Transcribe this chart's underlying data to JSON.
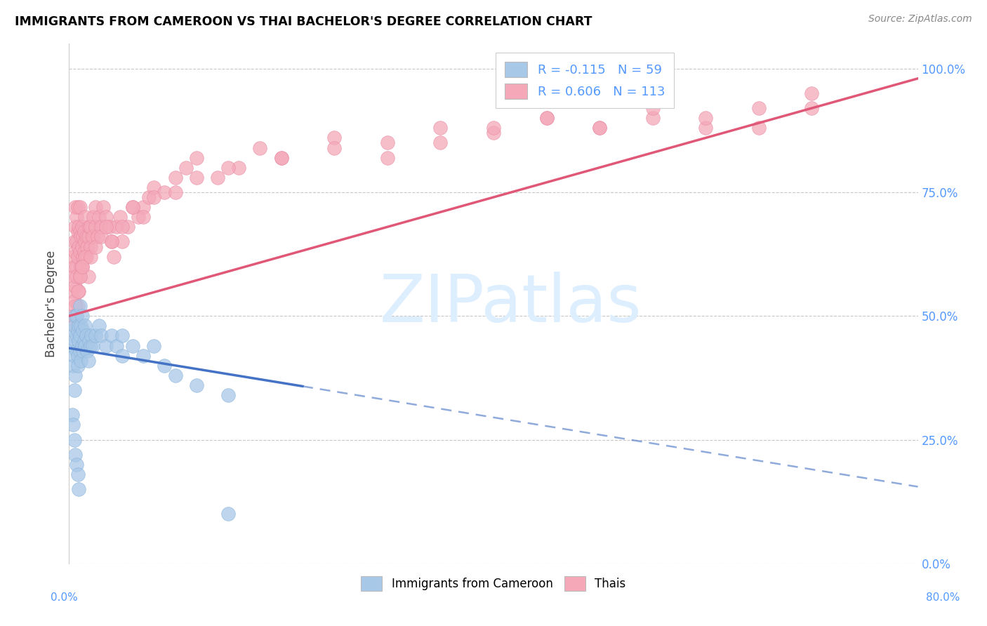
{
  "title": "IMMIGRANTS FROM CAMEROON VS THAI BACHELOR'S DEGREE CORRELATION CHART",
  "source": "Source: ZipAtlas.com",
  "xlim": [
    0.0,
    0.8
  ],
  "ylim": [
    0.0,
    1.05
  ],
  "ylabel": "Bachelor's Degree",
  "cameroon_color": "#a8c8e8",
  "cameroon_edge_color": "#85b0d8",
  "thai_color": "#f4a8b8",
  "thai_edge_color": "#e888a0",
  "cameroon_line_color": "#4472c4",
  "thai_line_color": "#e05878",
  "watermark_color": "#ddeeff",
  "background_color": "#ffffff",
  "grid_color": "#c8c8c8",
  "right_tick_color": "#5599ff",
  "x_ticks": [
    0.0,
    0.1,
    0.2,
    0.3,
    0.4,
    0.5,
    0.6,
    0.7,
    0.8
  ],
  "y_ticks": [
    0.0,
    0.25,
    0.5,
    0.75,
    1.0
  ],
  "cameroon_x": [
    0.003,
    0.004,
    0.004,
    0.005,
    0.005,
    0.005,
    0.006,
    0.006,
    0.006,
    0.007,
    0.007,
    0.007,
    0.008,
    0.008,
    0.008,
    0.009,
    0.009,
    0.01,
    0.01,
    0.01,
    0.011,
    0.011,
    0.012,
    0.012,
    0.013,
    0.013,
    0.014,
    0.015,
    0.015,
    0.016,
    0.017,
    0.018,
    0.019,
    0.02,
    0.021,
    0.022,
    0.025,
    0.028,
    0.03,
    0.035,
    0.04,
    0.045,
    0.05,
    0.06,
    0.07,
    0.08,
    0.09,
    0.1,
    0.12,
    0.15,
    0.003,
    0.004,
    0.005,
    0.006,
    0.007,
    0.008,
    0.009,
    0.05,
    0.15
  ],
  "cameroon_y": [
    0.44,
    0.47,
    0.4,
    0.42,
    0.48,
    0.35,
    0.45,
    0.5,
    0.38,
    0.43,
    0.46,
    0.5,
    0.42,
    0.47,
    0.4,
    0.45,
    0.48,
    0.43,
    0.46,
    0.52,
    0.41,
    0.48,
    0.44,
    0.5,
    0.43,
    0.47,
    0.45,
    0.44,
    0.48,
    0.46,
    0.43,
    0.41,
    0.45,
    0.44,
    0.46,
    0.44,
    0.46,
    0.48,
    0.46,
    0.44,
    0.46,
    0.44,
    0.46,
    0.44,
    0.42,
    0.44,
    0.4,
    0.38,
    0.36,
    0.34,
    0.3,
    0.28,
    0.25,
    0.22,
    0.2,
    0.18,
    0.15,
    0.42,
    0.1
  ],
  "thai_x": [
    0.003,
    0.004,
    0.004,
    0.005,
    0.005,
    0.006,
    0.006,
    0.006,
    0.007,
    0.007,
    0.007,
    0.008,
    0.008,
    0.008,
    0.009,
    0.009,
    0.01,
    0.01,
    0.01,
    0.011,
    0.011,
    0.012,
    0.012,
    0.013,
    0.013,
    0.014,
    0.014,
    0.015,
    0.015,
    0.016,
    0.016,
    0.017,
    0.018,
    0.019,
    0.02,
    0.02,
    0.022,
    0.023,
    0.025,
    0.025,
    0.027,
    0.028,
    0.03,
    0.032,
    0.035,
    0.038,
    0.04,
    0.042,
    0.045,
    0.048,
    0.05,
    0.055,
    0.06,
    0.065,
    0.07,
    0.075,
    0.08,
    0.09,
    0.1,
    0.11,
    0.12,
    0.14,
    0.16,
    0.18,
    0.2,
    0.25,
    0.3,
    0.35,
    0.4,
    0.45,
    0.5,
    0.55,
    0.6,
    0.65,
    0.7,
    0.004,
    0.005,
    0.006,
    0.007,
    0.008,
    0.009,
    0.01,
    0.012,
    0.015,
    0.018,
    0.02,
    0.025,
    0.03,
    0.035,
    0.04,
    0.05,
    0.06,
    0.07,
    0.08,
    0.1,
    0.12,
    0.15,
    0.2,
    0.25,
    0.3,
    0.35,
    0.4,
    0.45,
    0.5,
    0.55,
    0.6,
    0.65,
    0.7,
    0.005,
    0.006,
    0.007,
    0.008,
    0.01,
    0.012
  ],
  "thai_y": [
    0.55,
    0.58,
    0.62,
    0.6,
    0.65,
    0.63,
    0.68,
    0.72,
    0.6,
    0.65,
    0.7,
    0.62,
    0.67,
    0.72,
    0.64,
    0.68,
    0.63,
    0.67,
    0.72,
    0.6,
    0.66,
    0.64,
    0.68,
    0.62,
    0.66,
    0.63,
    0.67,
    0.65,
    0.7,
    0.62,
    0.66,
    0.64,
    0.66,
    0.68,
    0.64,
    0.68,
    0.66,
    0.7,
    0.68,
    0.72,
    0.66,
    0.7,
    0.68,
    0.72,
    0.7,
    0.68,
    0.65,
    0.62,
    0.68,
    0.7,
    0.65,
    0.68,
    0.72,
    0.7,
    0.72,
    0.74,
    0.76,
    0.75,
    0.78,
    0.8,
    0.82,
    0.78,
    0.8,
    0.84,
    0.82,
    0.86,
    0.85,
    0.88,
    0.87,
    0.9,
    0.88,
    0.9,
    0.88,
    0.92,
    0.95,
    0.5,
    0.53,
    0.56,
    0.58,
    0.52,
    0.55,
    0.58,
    0.6,
    0.62,
    0.58,
    0.62,
    0.64,
    0.66,
    0.68,
    0.65,
    0.68,
    0.72,
    0.7,
    0.74,
    0.75,
    0.78,
    0.8,
    0.82,
    0.84,
    0.82,
    0.85,
    0.88,
    0.9,
    0.88,
    0.92,
    0.9,
    0.88,
    0.92,
    0.48,
    0.52,
    0.5,
    0.55,
    0.58,
    0.6
  ],
  "cam_line_start_x": 0.0,
  "cam_line_end_solid_x": 0.22,
  "cam_line_end_dash_x": 0.8,
  "cam_line_intercept": 0.435,
  "cam_line_slope": -0.35,
  "thai_line_intercept": 0.5,
  "thai_line_slope": 0.6
}
